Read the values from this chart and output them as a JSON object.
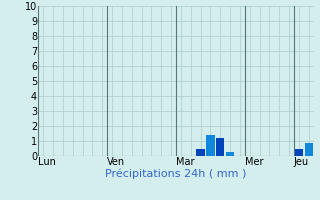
{
  "xlabel": "Précipitations 24h ( mm )",
  "ylim": [
    0,
    10
  ],
  "yticks": [
    0,
    1,
    2,
    3,
    4,
    5,
    6,
    7,
    8,
    9,
    10
  ],
  "background_color": "#d4eeee",
  "grid_color": "#aacccc",
  "bar_color_dark": "#0044bb",
  "bar_color_light": "#1188dd",
  "n_bars": 28,
  "bars": [
    0,
    0,
    0,
    0,
    0,
    0,
    0,
    0,
    0,
    0,
    0,
    0,
    0,
    0,
    0,
    0,
    0.5,
    1.4,
    1.2,
    0.3,
    0,
    0,
    0,
    0,
    0,
    0,
    0.5,
    0.9
  ],
  "bar_colors": [
    "none",
    "none",
    "none",
    "none",
    "none",
    "none",
    "none",
    "none",
    "none",
    "none",
    "none",
    "none",
    "none",
    "none",
    "none",
    "none",
    "#0044bb",
    "#1188dd",
    "#0044bb",
    "#1188dd",
    "none",
    "none",
    "none",
    "none",
    "none",
    "none",
    "#0044bb",
    "#1188dd"
  ],
  "day_labels": [
    "Lun",
    "Ven",
    "Mar",
    "Mer",
    "Jeu"
  ],
  "day_tick_positions": [
    0,
    7,
    14,
    21,
    26
  ],
  "vline_positions": [
    7,
    14,
    21,
    26
  ],
  "xlabel_fontsize": 8,
  "tick_fontsize": 7,
  "xlabel_color": "#3366cc"
}
